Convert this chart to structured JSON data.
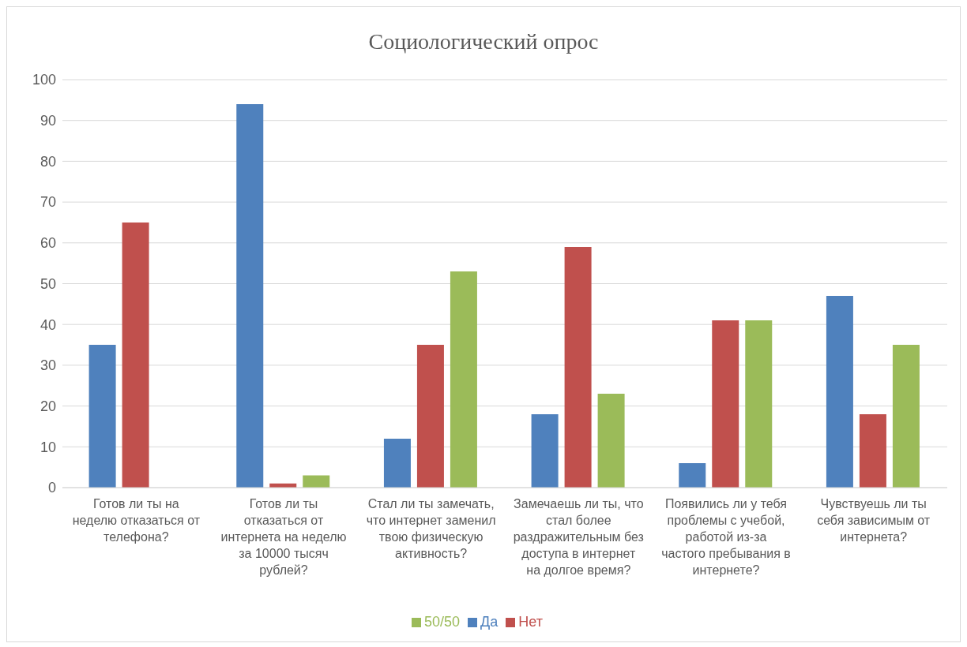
{
  "chart_data": {
    "type": "bar",
    "title": "Социологический опрос",
    "categories": [
      "Готов ли ты на неделю отказаться от телефона?",
      "Готов ли ты отказаться от интернета на неделю за 10000 тысяч рублей?",
      "Стал ли ты замечать, что интернет заменил твою физическую активность?",
      "Замечаешь ли ты, что стал более раздражительным без доступа в интернет на долгое время?",
      "Появились ли у тебя проблемы с учебой, работой из-за частого пребывания в интернете?",
      "Чувствуешь ли ты себя зависимым от интернета?"
    ],
    "series": [
      {
        "name": "Да",
        "color": "#4f81bd",
        "values": [
          35,
          94,
          12,
          18,
          6,
          47
        ]
      },
      {
        "name": "Нет",
        "color": "#c0504d",
        "values": [
          65,
          1,
          35,
          59,
          41,
          18
        ]
      },
      {
        "name": "50/50",
        "color": "#9bbb59",
        "values": [
          null,
          3,
          53,
          23,
          41,
          35
        ]
      }
    ],
    "ylim": [
      0,
      100
    ],
    "yticks": [
      0,
      10,
      20,
      30,
      40,
      50,
      60,
      70,
      80,
      90,
      100
    ],
    "grid": "y",
    "legend": "bottom"
  }
}
